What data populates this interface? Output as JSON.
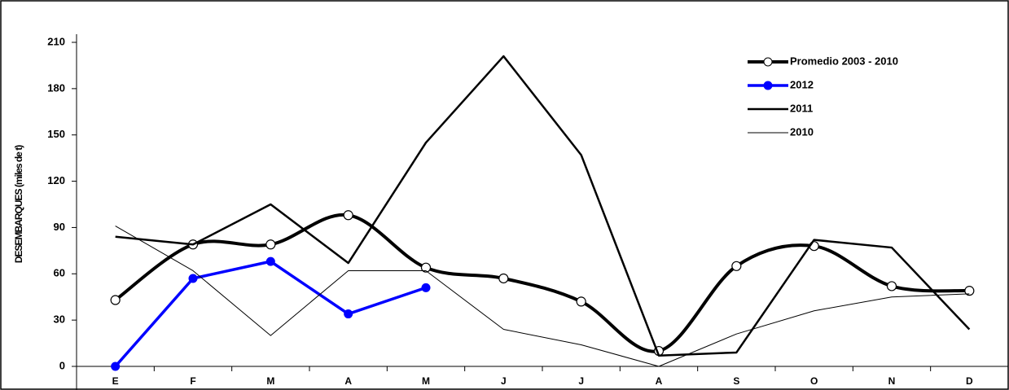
{
  "chart_data": {
    "type": "line",
    "y_label": "DESEMBARQUES (miles de t)",
    "categories": [
      "E",
      "F",
      "M",
      "A",
      "M",
      "J",
      "J",
      "A",
      "S",
      "O",
      "N",
      "D"
    ],
    "ylim": [
      0,
      210
    ],
    "yticks": [
      0,
      30,
      60,
      90,
      120,
      150,
      180,
      210
    ],
    "legend": "upper right",
    "series": [
      {
        "name": "Promedio 2003 - 2010",
        "color": "#000000",
        "values": [
          43,
          79,
          79,
          98,
          64,
          57,
          42,
          10,
          65,
          78,
          52,
          49
        ]
      },
      {
        "name": "2012",
        "color": "#0000ff",
        "values": [
          0,
          57,
          68,
          34,
          51,
          null,
          null,
          null,
          null,
          null,
          null,
          null
        ]
      },
      {
        "name": "2011",
        "color": "#000000",
        "values": [
          84,
          79,
          105,
          67,
          145,
          201,
          137,
          7,
          9,
          82,
          77,
          24
        ]
      },
      {
        "name": "2010",
        "color": "#000000",
        "values": [
          91,
          62,
          20,
          62,
          62,
          24,
          14,
          0,
          21,
          36,
          45,
          47
        ]
      }
    ]
  }
}
